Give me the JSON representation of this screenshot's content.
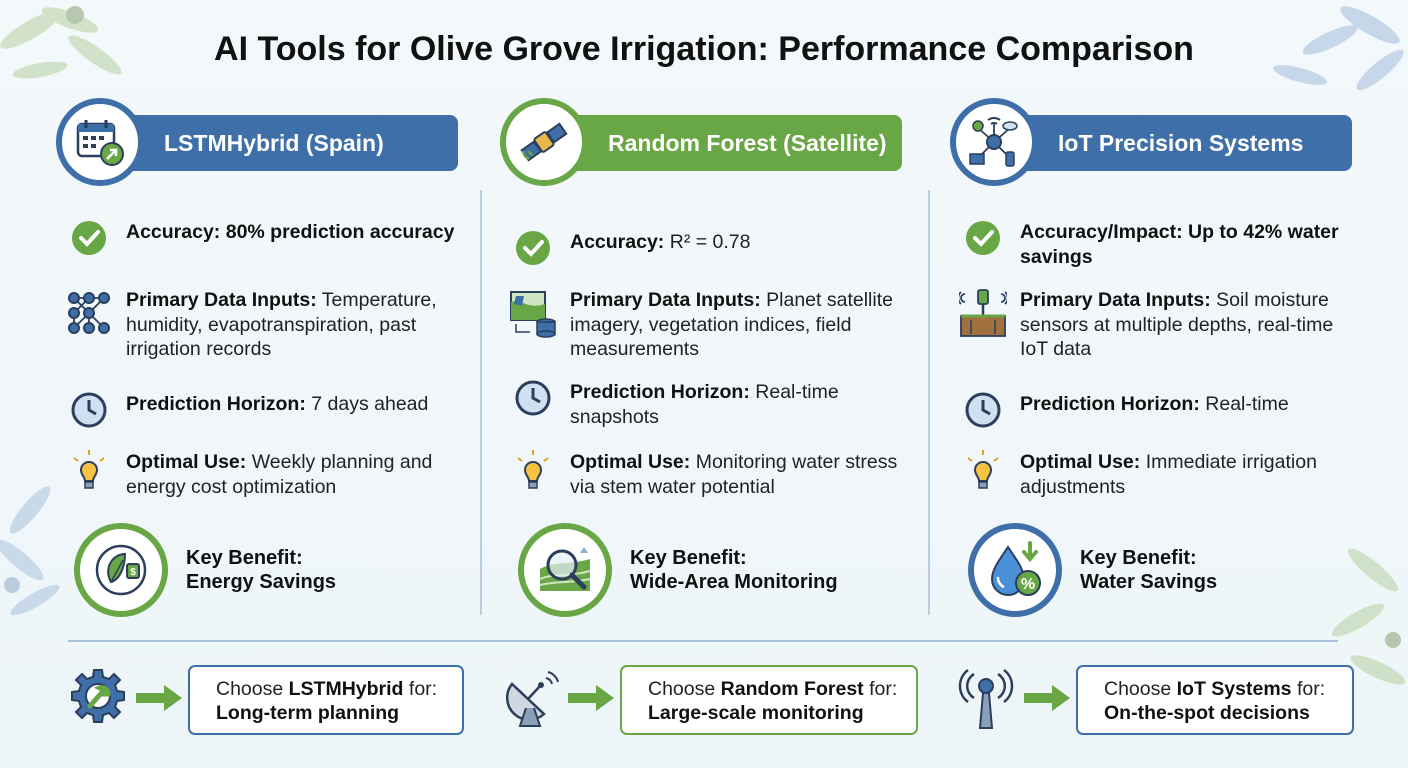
{
  "title": "AI Tools for Olive Grove Irrigation: Performance Comparison",
  "columns": [
    {
      "header": "LSTMHybrid (Spain)",
      "accuracy": {
        "label": "Accuracy:",
        "value": "80% prediction accuracy"
      },
      "inputs": {
        "label": "Primary Data Inputs:",
        "value": "Temperature, humidity, evapotranspiration, past irrigation records"
      },
      "horizon": {
        "label": "Prediction Horizon:",
        "value": "7 days ahead"
      },
      "use": {
        "label": "Optimal Use:",
        "value": "Weekly planning and energy cost optimization"
      },
      "benefit": {
        "label": "Key Benefit:",
        "value": "Energy Savings"
      }
    },
    {
      "header": "Random Forest (Satellite)",
      "accuracy": {
        "label": "Accuracy:",
        "value": "R² = 0.78"
      },
      "inputs": {
        "label": "Primary Data Inputs:",
        "value": "Planet satellite imagery, vegetation indices, field measurements"
      },
      "horizon": {
        "label": "Prediction Horizon:",
        "value": "Real-time snapshots"
      },
      "use": {
        "label": "Optimal Use:",
        "value": "Monitoring water stress via stem water potential"
      },
      "benefit": {
        "label": "Key Benefit:",
        "value": "Wide-Area Monitoring"
      }
    },
    {
      "header": "IoT Precision Systems",
      "accuracy": {
        "label": "Accuracy/Impact:",
        "value": "Up to 42% water savings"
      },
      "inputs": {
        "label": "Primary Data Inputs:",
        "value": "Soil moisture sensors at multiple depths, real-time IoT data"
      },
      "horizon": {
        "label": "Prediction Horizon:",
        "value": "Real-time"
      },
      "use": {
        "label": "Optimal Use:",
        "value": "Immediate irrigation adjustments"
      },
      "benefit": {
        "label": "Key Benefit:",
        "value": "Water Savings"
      }
    }
  ],
  "recommendations": [
    {
      "prefix": "Choose",
      "tool": "LSTMHybrid",
      "suffix": "for:",
      "purpose": "Long-term planning"
    },
    {
      "prefix": "Choose",
      "tool": "Random Forest",
      "suffix": "for:",
      "purpose": "Large-scale monitoring"
    },
    {
      "prefix": "Choose",
      "tool": "IoT Systems",
      "suffix": "for:",
      "purpose": "On-the-spot decisions"
    }
  ],
  "icons": {
    "col1_header": "calendar-trend-icon",
    "col2_header": "satellite-icon",
    "col3_header": "iot-network-icon",
    "accuracy": "check-circle-icon",
    "inputs_col1": "neural-network-icon",
    "inputs_col2": "satellite-map-database-icon",
    "inputs_col3": "soil-sensor-icon",
    "horizon": "clock-icon",
    "use": "lightbulb-icon",
    "benefit_col1": "leaf-plug-icon",
    "benefit_col2": "field-magnifier-icon",
    "benefit_col3": "water-drop-percent-icon",
    "rec_col1": "gear-wrench-icon",
    "rec_col2": "satellite-dish-icon",
    "rec_col3": "antenna-tower-icon",
    "arrow": "right-arrow-icon"
  },
  "colors": {
    "blue": "#3f6fa8",
    "green": "#69a645",
    "text": "#111111"
  }
}
